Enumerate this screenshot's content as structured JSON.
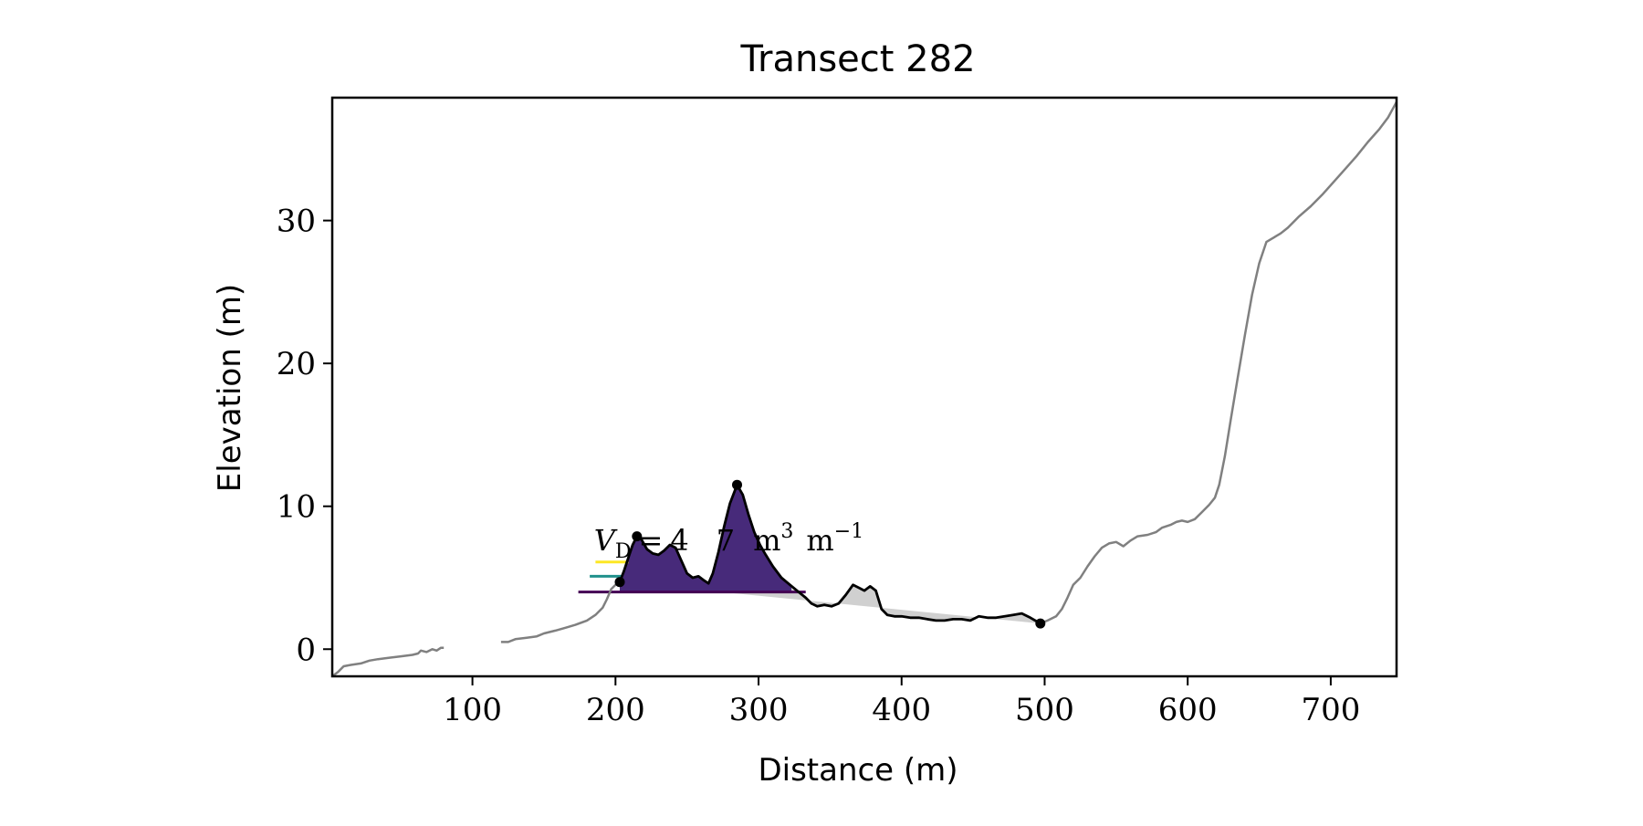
{
  "chart_data": {
    "type": "line",
    "title": "Transect 282",
    "xlabel": "Distance (m)",
    "ylabel": "Elevation (m)",
    "xlim": [
      2,
      746
    ],
    "ylim": [
      -1.9,
      38.6
    ],
    "x_ticks": [
      100,
      200,
      300,
      400,
      500,
      600,
      700
    ],
    "y_ticks": [
      0,
      10,
      20,
      30
    ],
    "grid": false,
    "legend": "none",
    "annotation": {
      "volume_symbol": "V",
      "volume_subscript": "D",
      "volume_equals": "=",
      "volume_value": "4",
      "volume_value_tail": "7",
      "volume_unit": "m",
      "volume_unit_exp": "3",
      "volume_unit2": "m",
      "volume_unit2_exp": "−1",
      "x": 185,
      "y": 6.9
    },
    "colors": {
      "profile": "#808080",
      "dune_line": "#000000",
      "residual_fill": "#d0d0d0",
      "band_yellow": "#fde725",
      "band_teal": "#21918c",
      "band_purple": "#440154",
      "band_purple_fill": "#472a7a"
    },
    "series": [
      {
        "role": "profile_segment_1",
        "color": "#808080",
        "points": [
          [
            2,
            -1.9
          ],
          [
            6,
            -1.6
          ],
          [
            10,
            -1.2
          ],
          [
            15,
            -1.1
          ],
          [
            22,
            -1.0
          ],
          [
            28,
            -0.8
          ],
          [
            34,
            -0.7
          ],
          [
            42,
            -0.6
          ],
          [
            50,
            -0.5
          ],
          [
            58,
            -0.4
          ],
          [
            62,
            -0.3
          ],
          [
            64,
            -0.1
          ],
          [
            68,
            -0.2
          ],
          [
            72,
            0.0
          ],
          [
            75,
            -0.1
          ],
          [
            78,
            0.1
          ],
          [
            80,
            0.1
          ]
        ]
      },
      {
        "role": "profile_segment_2",
        "color": "#808080",
        "points": [
          [
            120,
            0.5
          ],
          [
            125,
            0.5
          ],
          [
            130,
            0.7
          ],
          [
            138,
            0.8
          ],
          [
            145,
            0.9
          ],
          [
            150,
            1.1
          ],
          [
            158,
            1.3
          ],
          [
            165,
            1.5
          ],
          [
            172,
            1.7
          ],
          [
            180,
            2.0
          ],
          [
            186,
            2.4
          ],
          [
            191,
            2.9
          ],
          [
            194,
            3.5
          ],
          [
            197,
            4.2
          ],
          [
            200,
            4.5
          ],
          [
            203,
            4.7
          ]
        ]
      },
      {
        "role": "profile_segment_3",
        "color": "#808080",
        "points": [
          [
            497,
            1.8
          ],
          [
            502,
            2.0
          ],
          [
            508,
            2.3
          ],
          [
            512,
            2.8
          ],
          [
            516,
            3.6
          ],
          [
            520,
            4.5
          ],
          [
            525,
            5.0
          ],
          [
            530,
            5.8
          ],
          [
            535,
            6.5
          ],
          [
            540,
            7.1
          ],
          [
            545,
            7.4
          ],
          [
            550,
            7.5
          ],
          [
            555,
            7.2
          ],
          [
            560,
            7.6
          ],
          [
            565,
            7.9
          ],
          [
            572,
            8.0
          ],
          [
            578,
            8.2
          ],
          [
            582,
            8.5
          ],
          [
            588,
            8.7
          ],
          [
            592,
            8.9
          ],
          [
            596,
            9.0
          ],
          [
            600,
            8.9
          ],
          [
            605,
            9.1
          ],
          [
            610,
            9.6
          ],
          [
            615,
            10.1
          ],
          [
            619,
            10.6
          ],
          [
            622,
            11.5
          ],
          [
            626,
            13.5
          ],
          [
            630,
            16.0
          ],
          [
            635,
            19.0
          ],
          [
            640,
            22.0
          ],
          [
            645,
            24.8
          ],
          [
            650,
            27.0
          ],
          [
            655,
            28.5
          ],
          [
            660,
            28.8
          ],
          [
            665,
            29.1
          ],
          [
            670,
            29.5
          ],
          [
            678,
            30.3
          ],
          [
            686,
            31.0
          ],
          [
            694,
            31.8
          ],
          [
            702,
            32.7
          ],
          [
            710,
            33.6
          ],
          [
            718,
            34.5
          ],
          [
            726,
            35.5
          ],
          [
            734,
            36.4
          ],
          [
            740,
            37.2
          ],
          [
            746,
            38.3
          ]
        ]
      },
      {
        "role": "dune_profile",
        "color": "#000000",
        "points": [
          [
            203,
            4.7
          ],
          [
            206,
            5.5
          ],
          [
            209,
            6.4
          ],
          [
            212,
            7.3
          ],
          [
            215,
            7.9
          ],
          [
            218,
            7.7
          ],
          [
            222,
            7.0
          ],
          [
            226,
            6.7
          ],
          [
            230,
            6.6
          ],
          [
            234,
            6.9
          ],
          [
            238,
            7.3
          ],
          [
            242,
            7.1
          ],
          [
            246,
            6.2
          ],
          [
            250,
            5.3
          ],
          [
            254,
            5.0
          ],
          [
            258,
            5.1
          ],
          [
            262,
            4.8
          ],
          [
            265,
            4.6
          ],
          [
            268,
            5.3
          ],
          [
            272,
            6.8
          ],
          [
            276,
            8.6
          ],
          [
            280,
            10.2
          ],
          [
            285,
            11.5
          ],
          [
            289,
            10.8
          ],
          [
            293,
            9.4
          ],
          [
            297,
            8.2
          ],
          [
            301,
            7.3
          ],
          [
            305,
            6.6
          ],
          [
            310,
            5.8
          ],
          [
            316,
            5.0
          ],
          [
            322,
            4.5
          ],
          [
            328,
            4.0
          ],
          [
            333,
            3.6
          ],
          [
            337,
            3.2
          ],
          [
            341,
            3.0
          ],
          [
            346,
            3.1
          ],
          [
            351,
            3.0
          ],
          [
            356,
            3.2
          ],
          [
            361,
            3.8
          ],
          [
            366,
            4.5
          ],
          [
            370,
            4.3
          ],
          [
            374,
            4.1
          ],
          [
            378,
            4.4
          ],
          [
            382,
            4.1
          ],
          [
            386,
            2.8
          ],
          [
            390,
            2.4
          ],
          [
            395,
            2.3
          ],
          [
            400,
            2.3
          ],
          [
            406,
            2.2
          ],
          [
            412,
            2.2
          ],
          [
            418,
            2.1
          ],
          [
            424,
            2.0
          ],
          [
            430,
            2.0
          ],
          [
            436,
            2.1
          ],
          [
            442,
            2.1
          ],
          [
            448,
            2.0
          ],
          [
            454,
            2.3
          ],
          [
            460,
            2.2
          ],
          [
            466,
            2.2
          ],
          [
            472,
            2.3
          ],
          [
            478,
            2.4
          ],
          [
            484,
            2.5
          ],
          [
            490,
            2.2
          ],
          [
            497,
            1.8
          ]
        ]
      }
    ],
    "residual_baseline": [
      [
        203,
        4.7
      ],
      [
        497,
        1.8
      ]
    ],
    "markers": [
      [
        203,
        4.7
      ],
      [
        215,
        7.9
      ],
      [
        285,
        11.5
      ],
      [
        497,
        1.8
      ]
    ],
    "bands": [
      {
        "color": "#fde725",
        "line_start": 186,
        "level": 6.1,
        "fill_from": 209,
        "fill_to": 245
      },
      {
        "color": "#21918c",
        "line_start": 182,
        "level": 5.1,
        "fill_from": 205,
        "fill_to": 261
      },
      {
        "color": "#440154",
        "line_start": 174,
        "level": 4.0,
        "fill_from": 203,
        "fill_to": 323
      }
    ]
  }
}
